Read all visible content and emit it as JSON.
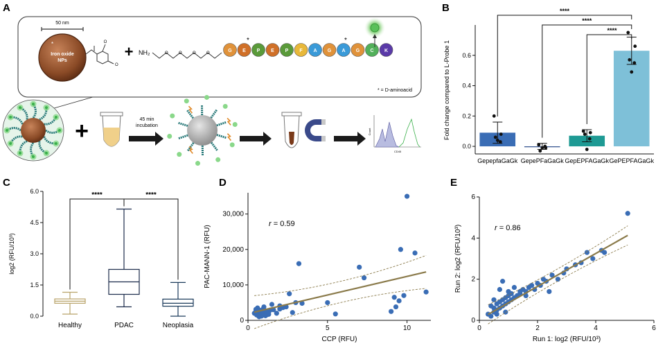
{
  "panels": {
    "A": {
      "letter": "A",
      "scale_bar": "50 nm",
      "np_label_line1": "Iron oxide",
      "np_label_line2": "NPs",
      "np_star": "*",
      "plus": "+",
      "nh2_label": "NH₂",
      "peptide_residues": [
        "G",
        "E",
        "P",
        "E",
        "P",
        "F",
        "A",
        "G",
        "A",
        "G",
        "C",
        "K"
      ],
      "residue_colors": [
        "#e0923a",
        "#d07028",
        "#5a9a3a",
        "#d07028",
        "#5a9a3a",
        "#e8b83a",
        "#3a9ad8",
        "#e0923a",
        "#3a9ad8",
        "#e0923a",
        "#52b05a",
        "#5a3aa8"
      ],
      "d_marks": [
        "*",
        "*"
      ],
      "d_note": "* = D-aminoacid",
      "incubation_line1": "45 min",
      "incubation_line2": "incubation",
      "flow_xlabel": "CD45",
      "flow_ylabel": "Count"
    },
    "B": {
      "letter": "B",
      "significance": [
        "****",
        "****",
        "****"
      ]
    },
    "C": {
      "letter": "C",
      "significance": [
        "****",
        "****"
      ]
    },
    "D": {
      "letter": "D",
      "annotation": "r = 0.59"
    },
    "E": {
      "letter": "E",
      "annotation": "r = 0.86"
    }
  },
  "chart_data": [
    {
      "id": "B",
      "type": "bar",
      "categories": [
        "GepepfaGaGk",
        "GepePFaGaGk",
        "GepEPFAGaGk",
        "GePEPFAGaGk"
      ],
      "values": [
        0.09,
        0.0,
        0.07,
        0.63
      ],
      "errors": [
        0.07,
        0.02,
        0.04,
        0.09
      ],
      "colors": [
        "#3a6db5",
        "#2a4a8a",
        "#1e9a94",
        "#7ec0d8"
      ],
      "points": [
        [
          0.2,
          0.08,
          0.06,
          0.03,
          0.04
        ],
        [
          0.01,
          -0.01,
          -0.03,
          0.0,
          -0.01
        ],
        [
          0.1,
          0.09,
          0.08,
          0.05,
          -0.02
        ],
        [
          0.75,
          0.66,
          0.57,
          0.55,
          0.49
        ]
      ],
      "ylabel": "Fold change compared to L-Probe 1",
      "ylim": [
        -0.05,
        0.8
      ],
      "yticks": [
        0.0,
        0.2,
        0.4,
        0.6
      ],
      "ytick_labels": [
        "0.0",
        "0.2",
        "0.4",
        "0.6"
      ],
      "brackets": [
        [
          0,
          3
        ],
        [
          1,
          3
        ],
        [
          2,
          3
        ]
      ]
    },
    {
      "id": "C",
      "type": "box",
      "categories": [
        "Healthy",
        "PDAC",
        "Neoplasia"
      ],
      "boxes": [
        {
          "min": 0.1,
          "q1": 0.62,
          "median": 0.72,
          "q3": 0.83,
          "max": 1.15,
          "color": "#b8a268"
        },
        {
          "min": 0.45,
          "q1": 1.05,
          "median": 1.65,
          "q3": 2.25,
          "max": 5.15,
          "color": "#1a2a4a"
        },
        {
          "min": 0.0,
          "q1": 0.48,
          "median": 0.62,
          "q3": 0.82,
          "max": 1.62,
          "color": "#1a3a5a"
        }
      ],
      "ylabel": "log2 (RFU/10³)",
      "ylim": [
        0,
        6
      ],
      "yticks": [
        0,
        1.5,
        3,
        4.5,
        6
      ],
      "ytick_labels": [
        "0.0",
        "1.5",
        "3.0",
        "4.5",
        "6.0"
      ],
      "brackets": [
        [
          0,
          1
        ],
        [
          1,
          2
        ]
      ]
    },
    {
      "id": "D",
      "type": "scatter",
      "xlabel": "CCP (RFU)",
      "ylabel": "PAC-MANN-1 (RFU)",
      "xlim": [
        0,
        11.5
      ],
      "ylim": [
        0,
        36000
      ],
      "xticks": [
        0,
        5,
        10
      ],
      "xtick_labels": [
        "0",
        "5",
        "10"
      ],
      "yticks": [
        0,
        10000,
        20000,
        30000
      ],
      "ytick_labels": [
        "0",
        "10,000",
        "20,000",
        "30,000"
      ],
      "x": [
        0.4,
        0.5,
        0.55,
        0.6,
        0.65,
        0.7,
        0.75,
        0.8,
        0.85,
        0.9,
        0.95,
        1.0,
        1.05,
        1.1,
        1.2,
        1.3,
        1.4,
        0.6,
        0.7,
        0.8,
        0.9,
        1.0,
        1.1,
        1.2,
        1.5,
        1.6,
        1.8,
        2.0,
        2.2,
        2.4,
        2.6,
        3.0,
        3.2,
        3.4,
        2.8,
        5.0,
        5.5,
        7.0,
        7.3,
        9.0,
        9.2,
        9.5,
        9.6,
        9.3,
        9.8,
        10.0,
        10.5,
        11.2,
        0.5,
        0.7,
        1.3,
        2.0
      ],
      "y": [
        2000,
        2500,
        1500,
        2200,
        3000,
        1800,
        2600,
        2000,
        1200,
        2400,
        3200,
        1900,
        2800,
        2100,
        1600,
        2300,
        2900,
        3500,
        1000,
        1400,
        2700,
        3800,
        1300,
        2500,
        4500,
        3000,
        2000,
        3200,
        3600,
        3800,
        7500,
        5000,
        16000,
        4800,
        2200,
        5000,
        1800,
        15000,
        12000,
        2500,
        6500,
        5500,
        20000,
        3800,
        7000,
        35000,
        19000,
        8000,
        3100,
        2900,
        1700,
        4100
      ],
      "fit": {
        "slope": 1050,
        "intercept": 1900
      },
      "point_color": "#3a6db5",
      "line_color": "#8a7a4a"
    },
    {
      "id": "E",
      "type": "scatter",
      "xlabel": "Run 1: log2 (RFU/10³)",
      "ylabel": "Run 2: log2 (RFU/10³)",
      "xlim": [
        0,
        6
      ],
      "ylim": [
        0,
        6
      ],
      "xticks": [
        0,
        2,
        4,
        6
      ],
      "xtick_labels": [
        "0",
        "2",
        "4",
        "6"
      ],
      "yticks": [
        0,
        2,
        4,
        6
      ],
      "ytick_labels": [
        "0",
        "2",
        "4",
        "6"
      ],
      "x": [
        0.3,
        0.4,
        0.5,
        0.5,
        0.6,
        0.6,
        0.7,
        0.7,
        0.8,
        0.8,
        0.9,
        0.9,
        1.0,
        1.0,
        1.1,
        1.1,
        1.2,
        1.3,
        1.4,
        1.5,
        1.6,
        1.7,
        1.8,
        1.9,
        2.0,
        2.1,
        2.2,
        2.3,
        2.5,
        2.7,
        2.9,
        3.0,
        3.3,
        3.5,
        3.7,
        3.9,
        4.2,
        4.3,
        5.1,
        0.4,
        0.6,
        0.8,
        1.0,
        0.9,
        1.2,
        1.6,
        2.4,
        0.5,
        0.7,
        1.4
      ],
      "y": [
        0.3,
        0.7,
        0.4,
        0.6,
        0.5,
        0.8,
        0.6,
        0.9,
        0.7,
        1.0,
        0.8,
        1.1,
        0.9,
        1.2,
        1.0,
        1.3,
        1.1,
        1.2,
        1.3,
        1.5,
        1.4,
        1.6,
        1.7,
        1.5,
        1.8,
        1.7,
        2.0,
        1.9,
        2.2,
        2.0,
        2.3,
        2.5,
        2.7,
        2.8,
        3.3,
        3.0,
        3.4,
        3.3,
        5.2,
        0.2,
        0.3,
        1.9,
        1.4,
        0.4,
        1.6,
        1.2,
        1.4,
        1.0,
        1.5,
        1.4
      ],
      "fit": {
        "slope": 0.8,
        "intercept": 0.05
      },
      "point_color": "#3a6db5",
      "line_color": "#8a7a4a"
    }
  ]
}
